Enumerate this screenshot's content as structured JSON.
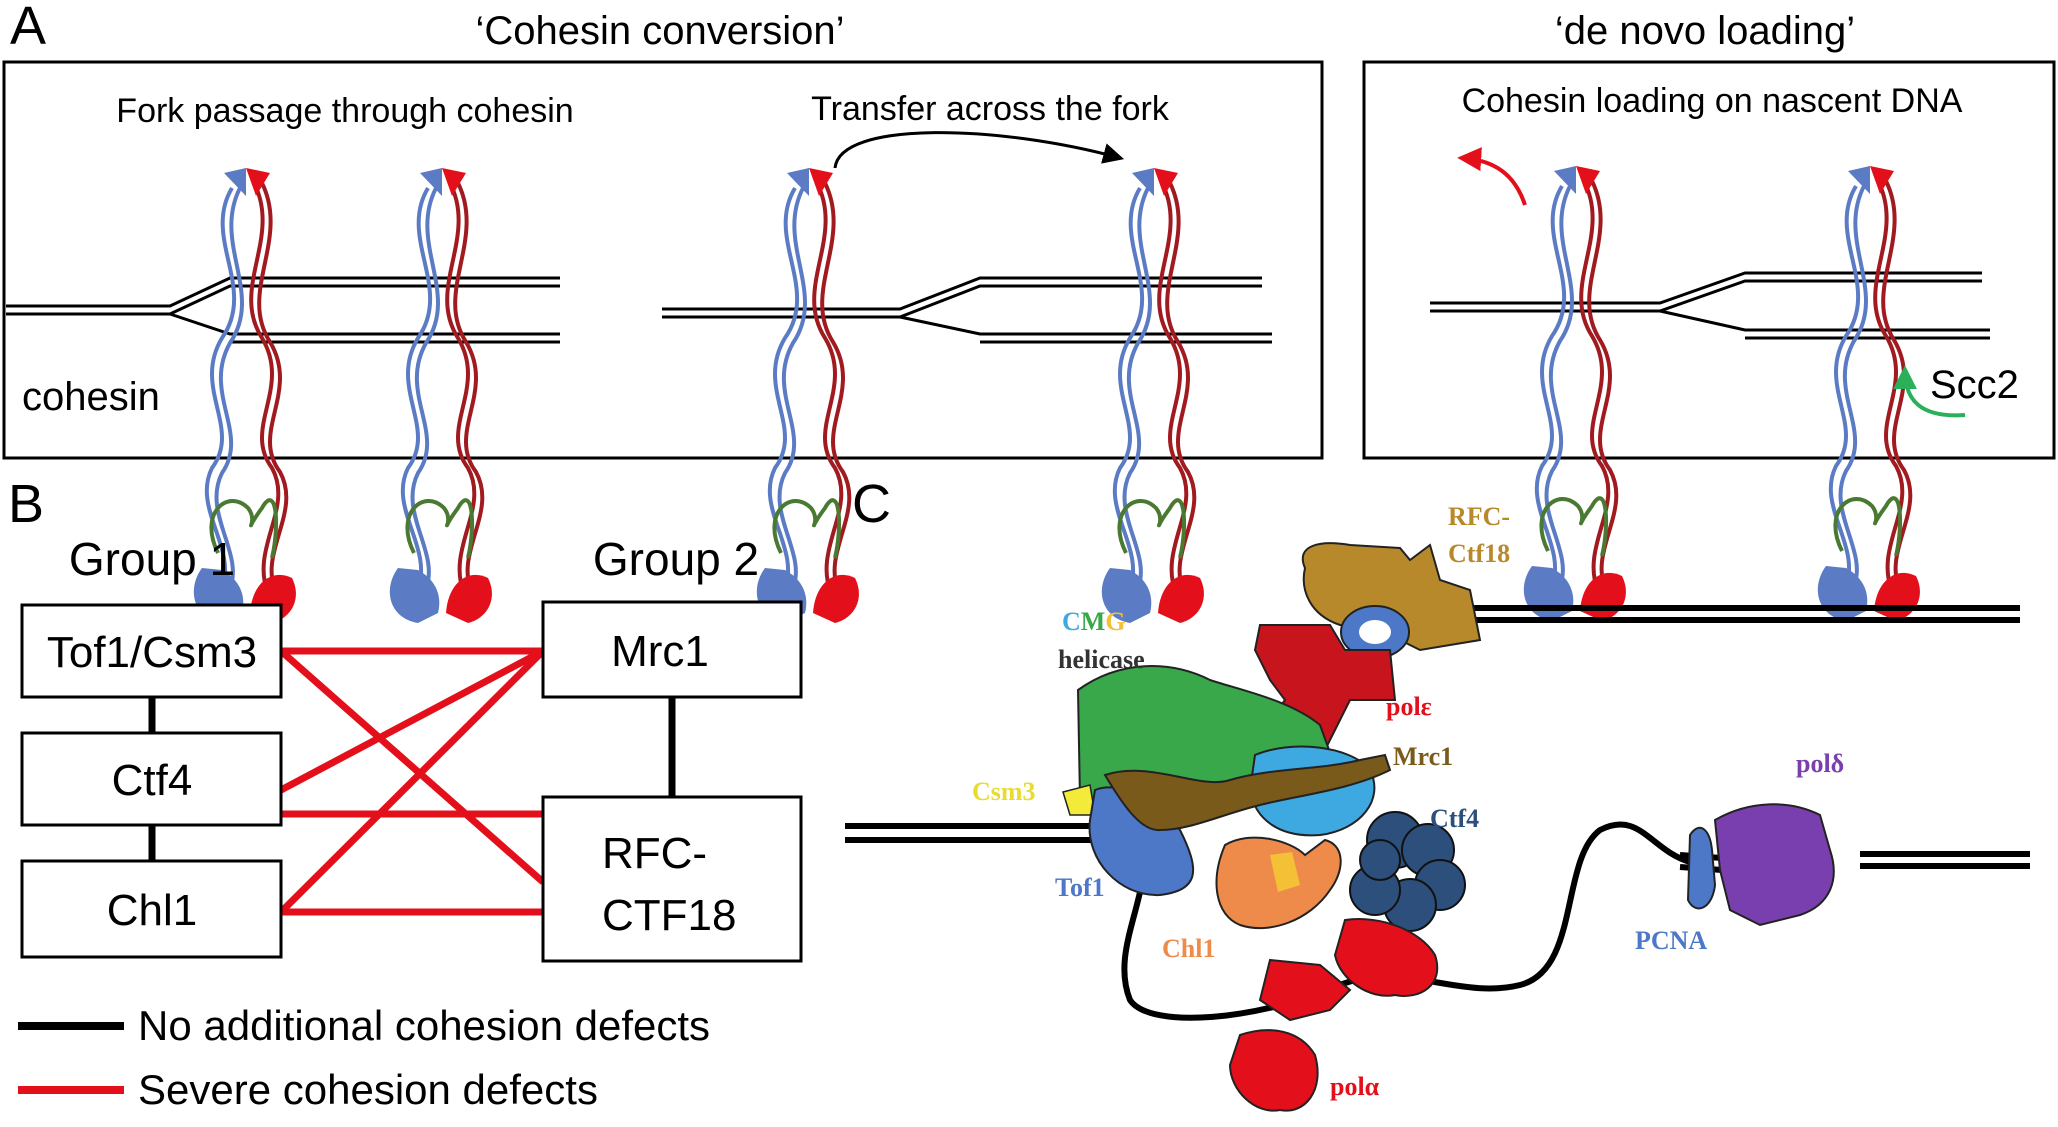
{
  "panels": {
    "a": {
      "letter": "A",
      "title_conversion": "‘Cohesin conversion’",
      "title_denovo": "‘de novo loading’",
      "sub_fork_passage": "Fork passage through cohesin",
      "sub_transfer": "Transfer across the fork",
      "sub_loading": "Cohesin loading on nascent DNA",
      "label_cohesin": "cohesin",
      "label_scc2": "Scc2"
    },
    "b": {
      "letter": "B",
      "group1": "Group 1",
      "group2": "Group 2",
      "g1_boxes": [
        "Tof1/Csm3",
        "Ctf4",
        "Chl1"
      ],
      "g2_box_mrc1": "Mrc1",
      "g2_box_rfc_line1": "RFC-",
      "g2_box_rfc_line2": "CTF18",
      "legend_black": "No additional cohesion defects",
      "legend_red": "Severe cohesion defects"
    },
    "c": {
      "letter": "C",
      "rfc_line1": "RFC-",
      "rfc_line2": "Ctf18",
      "cmg_c": "C",
      "cmg_m": "M",
      "cmg_g": "G",
      "helicase": "helicase",
      "pole": "polε",
      "mrc1": "Mrc1",
      "csm3": "Csm3",
      "ctf4": "Ctf4",
      "tof1": "Tof1",
      "chl1": "Chl1",
      "pcna": "PCNA",
      "pold": "polδ",
      "pola": "polα"
    }
  },
  "colors": {
    "red_line": "#e3101c",
    "cohesin_blue": "#5b7bc4",
    "cohesin_red": "#e3101c",
    "scc2_green": "#2bb05a",
    "rfc_gold": "#b8892a",
    "cmg_green": "#38a84a",
    "mrc1_brown": "#7a5a1a",
    "ctf4_navy": "#2c4f7c",
    "tof1_blue": "#4d78c8",
    "chl1_orange": "#ef8b4a",
    "pold_purple": "#7a3fae",
    "pol_red": "#e3101c"
  }
}
